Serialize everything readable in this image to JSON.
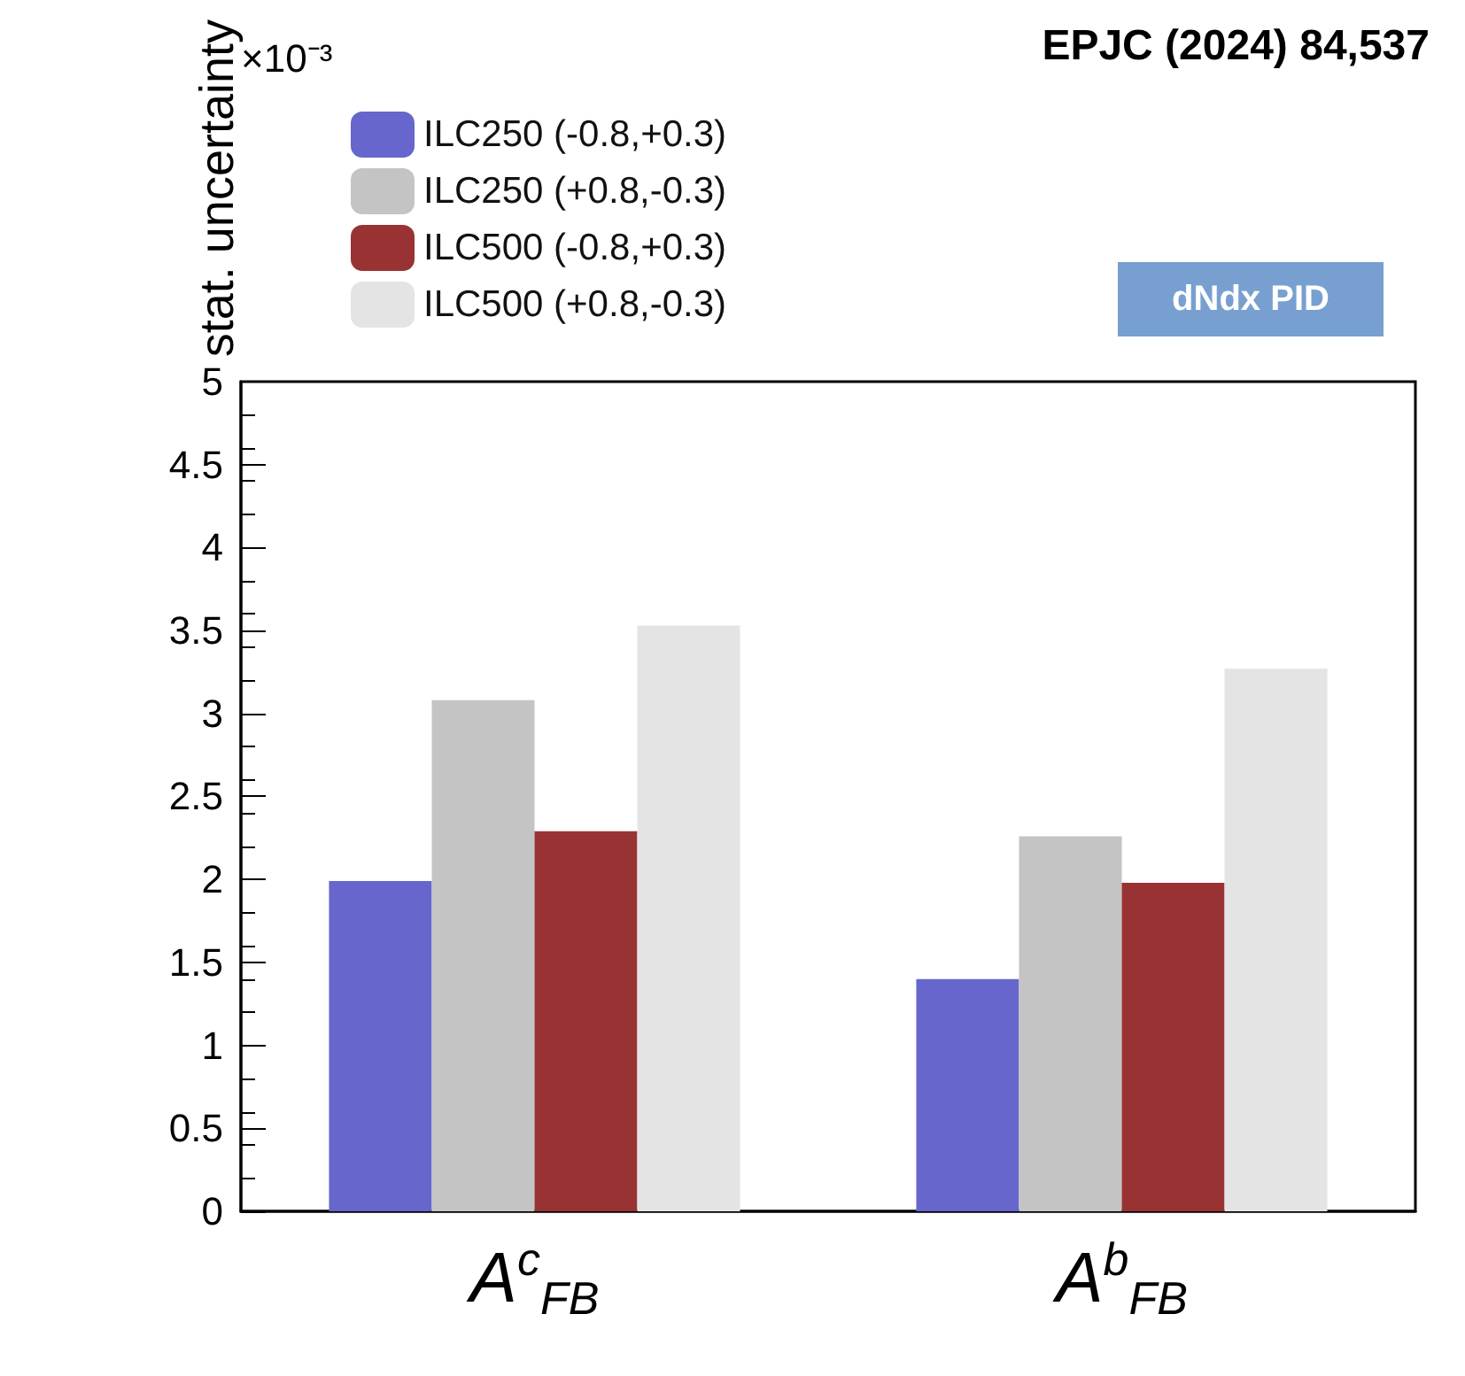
{
  "chart_data": {
    "type": "bar",
    "ylabel": "stat. uncertainty",
    "categories": [
      "A$^{c}$$_{FB}$",
      "A$^{b}$$_{FB}$"
    ],
    "series": [
      {
        "name": "ILC250 (-0.8,+0.3)",
        "color": "#6666cc",
        "values": [
          1.99,
          1.4
        ]
      },
      {
        "name": "ILC250 (+0.8,-0.3)",
        "color": "#c4c4c4",
        "values": [
          3.08,
          2.26
        ]
      },
      {
        "name": "ILC500 (-0.8,+0.3)",
        "color": "#993333",
        "values": [
          2.29,
          1.98
        ]
      },
      {
        "name": "ILC500 (+0.8,-0.3)",
        "color": "#e4e4e4",
        "values": [
          3.53,
          3.27
        ]
      }
    ],
    "ylim": [
      0,
      5
    ],
    "yticks": [
      0,
      0.5,
      1,
      1.5,
      2,
      2.5,
      3,
      3.5,
      4,
      4.5,
      5
    ],
    "grid": false,
    "legend": "top left",
    "annotations": [
      "×10⁻³",
      "EPJC (2024) 84,537",
      "dNdx PID"
    ]
  }
}
